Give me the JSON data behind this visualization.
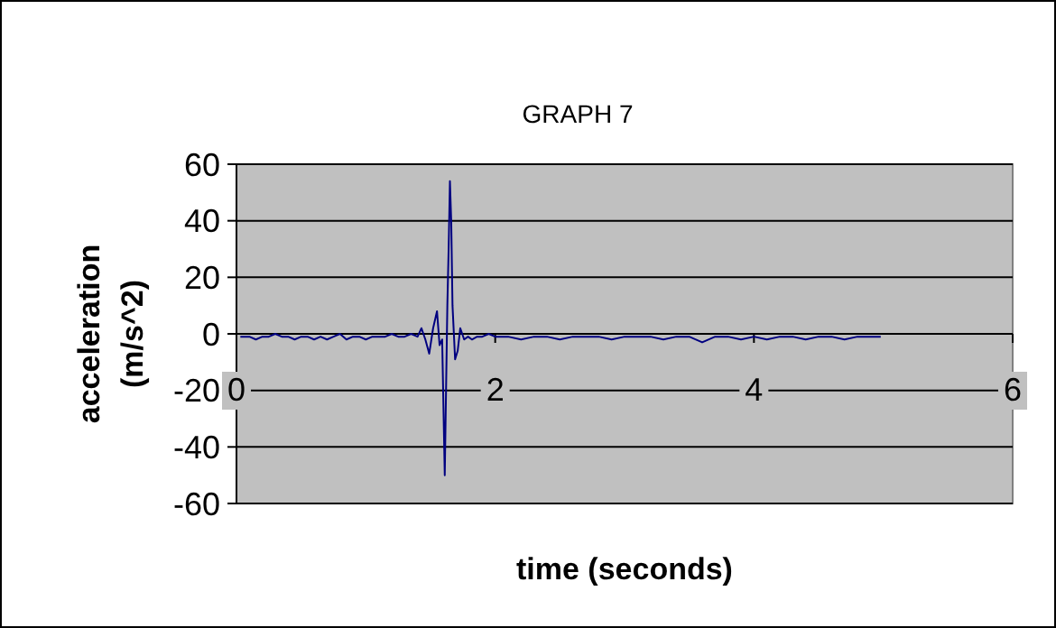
{
  "chart_data": {
    "type": "line",
    "title": "GRAPH 7",
    "xlabel": "time (seconds)",
    "ylabel": "acceleration (m/s^2)",
    "xlim": [
      0,
      6
    ],
    "ylim": [
      -60,
      60
    ],
    "xticks": [
      0,
      2,
      4,
      6
    ],
    "yticks": [
      -60,
      -40,
      -20,
      0,
      20,
      40,
      60
    ],
    "grid": "y",
    "marker": "none",
    "series": [
      {
        "color": "#000080",
        "x": [
          0.03,
          0.1,
          0.15,
          0.2,
          0.25,
          0.3,
          0.35,
          0.4,
          0.45,
          0.5,
          0.55,
          0.6,
          0.65,
          0.7,
          0.75,
          0.8,
          0.85,
          0.9,
          0.95,
          1.0,
          1.05,
          1.1,
          1.15,
          1.2,
          1.25,
          1.3,
          1.35,
          1.4,
          1.43,
          1.46,
          1.49,
          1.52,
          1.55,
          1.57,
          1.59,
          1.61,
          1.62,
          1.63,
          1.64,
          1.65,
          1.66,
          1.67,
          1.69,
          1.71,
          1.73,
          1.76,
          1.79,
          1.82,
          1.86,
          1.9,
          1.95,
          2.0,
          2.1,
          2.2,
          2.3,
          2.4,
          2.5,
          2.6,
          2.7,
          2.8,
          2.9,
          3.0,
          3.1,
          3.2,
          3.3,
          3.4,
          3.5,
          3.6,
          3.7,
          3.8,
          3.9,
          4.0,
          4.1,
          4.2,
          4.3,
          4.4,
          4.5,
          4.6,
          4.7,
          4.8,
          4.9,
          4.98
        ],
        "values": [
          -1,
          -1,
          -2,
          -1,
          -1,
          0,
          -1,
          -1,
          -2,
          -1,
          -1,
          -2,
          -1,
          -2,
          -1,
          0,
          -2,
          -1,
          -1,
          -2,
          -1,
          -1,
          -1,
          0,
          -1,
          -1,
          0,
          -1,
          2,
          -2,
          -7,
          2,
          8,
          -4,
          -2,
          -50,
          -20,
          10,
          30,
          54,
          40,
          10,
          -9,
          -6,
          2,
          -2,
          -1,
          -2,
          -1,
          -1,
          0,
          -1,
          -1,
          -2,
          -1,
          -1,
          -2,
          -1,
          -1,
          -1,
          -2,
          -1,
          -1,
          -1,
          -2,
          -1,
          -1,
          -3,
          -1,
          -1,
          -2,
          -1,
          -2,
          -1,
          -1,
          -2,
          -1,
          -1,
          -2,
          -1,
          -1,
          -1
        ]
      }
    ]
  }
}
